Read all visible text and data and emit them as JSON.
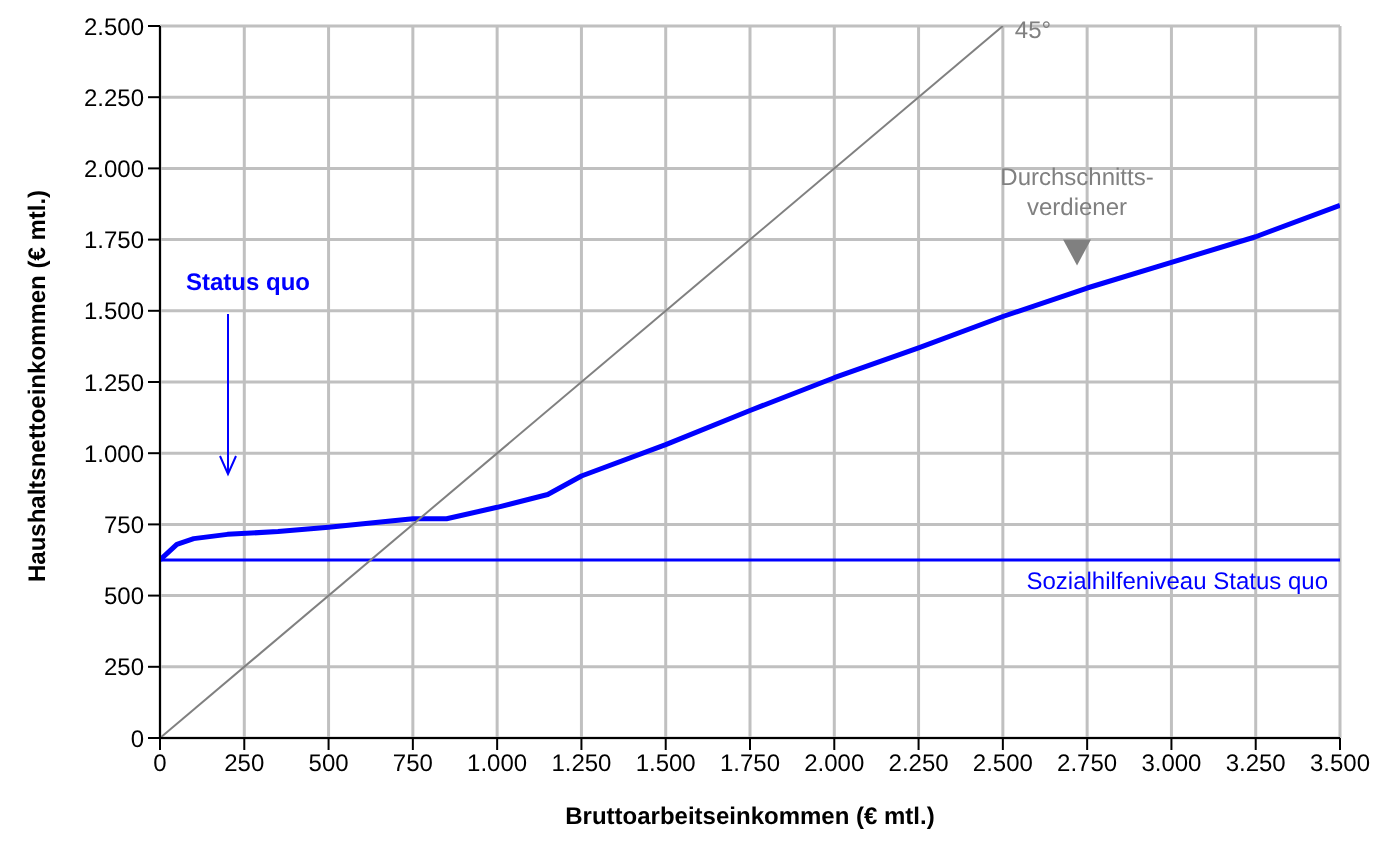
{
  "chart_data": {
    "type": "line",
    "xlabel": "Bruttoarbeitseinkommen (€ mtl.)",
    "ylabel": "Haushaltsnettoeinkommen (€ mtl.)",
    "xlim": [
      0,
      3500
    ],
    "ylim": [
      0,
      2500
    ],
    "xticks": [
      0,
      250,
      500,
      750,
      {
        "value": 1000,
        "label": "1.000"
      },
      {
        "value": 1250,
        "label": "1.250"
      },
      {
        "value": 1500,
        "label": "1.500"
      },
      {
        "value": 1750,
        "label": "1.750"
      },
      {
        "value": 2000,
        "label": "2.000"
      },
      {
        "value": 2250,
        "label": "2.250"
      },
      {
        "value": 2500,
        "label": "2.500"
      },
      {
        "value": 2750,
        "label": "2.750"
      },
      {
        "value": 3000,
        "label": "3.000"
      },
      {
        "value": 3250,
        "label": "3.250"
      },
      {
        "value": 3500,
        "label": "3.500"
      }
    ],
    "yticks": [
      0,
      250,
      500,
      750,
      {
        "value": 1000,
        "label": "1.000"
      },
      {
        "value": 1250,
        "label": "1.250"
      },
      {
        "value": 1500,
        "label": "1.500"
      },
      {
        "value": 1750,
        "label": "1.750"
      },
      {
        "value": 2000,
        "label": "2.000"
      },
      {
        "value": 2250,
        "label": "2.250"
      },
      {
        "value": 2500,
        "label": "2.500"
      }
    ],
    "grid": true,
    "legend": false,
    "marker": "none",
    "line_style": "solid",
    "series": [
      {
        "color": "#0000ff",
        "x": [
          0,
          50,
          100,
          200,
          350,
          500,
          750,
          850,
          1000,
          1150,
          1250,
          1500,
          1750,
          2000,
          2250,
          2500,
          2750,
          3000,
          3250,
          3500
        ],
        "values": [
          625,
          680,
          700,
          715,
          725,
          740,
          770,
          770,
          810,
          855,
          920,
          1030,
          1150,
          1265,
          1370,
          1480,
          1580,
          1670,
          1760,
          1870
        ]
      },
      {
        "color": "#808080",
        "x": [
          0,
          2500
        ],
        "values": [
          0,
          2500
        ]
      }
    ],
    "ref_lines": [
      {
        "axis": "y",
        "value": 625,
        "label": "Sozialhilfeniveau Status quo",
        "color": "#0000ff"
      }
    ],
    "annotations": [
      {
        "text": "45°",
        "x": 2500,
        "y": 2500
      },
      "Status quo",
      {
        "text": "Durchschnitts-\nverdiener",
        "x": 2720,
        "y": 1575
      }
    ]
  }
}
